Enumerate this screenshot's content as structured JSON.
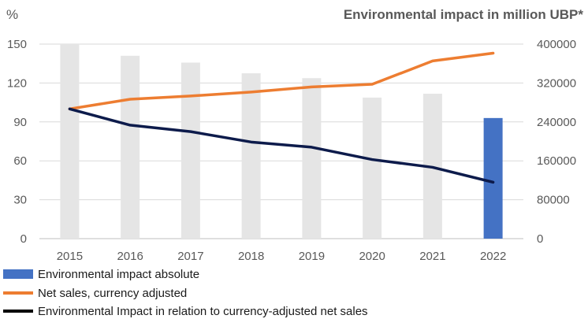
{
  "chart_data": {
    "type": "bar",
    "title": "Environmental impact in million UBP*",
    "ylabel_left": "%",
    "categories": [
      "2015",
      "2016",
      "2017",
      "2018",
      "2019",
      "2020",
      "2021",
      "2022"
    ],
    "y_left": {
      "min": 0,
      "max": 150,
      "ticks": [
        "0",
        "30",
        "60",
        "90",
        "120",
        "150"
      ]
    },
    "y_right": {
      "min": 0,
      "max": 400000,
      "ticks": [
        "0",
        "80000",
        "160000",
        "240000",
        "320000",
        "400000"
      ]
    },
    "series": [
      {
        "name": "Environmental impact absolute",
        "type": "bar",
        "axis": "right",
        "values": [
          400000,
          376000,
          362000,
          340000,
          330000,
          290000,
          298000,
          248000
        ],
        "colors": [
          "#e5e5e5",
          "#e5e5e5",
          "#e5e5e5",
          "#e5e5e5",
          "#e5e5e5",
          "#e5e5e5",
          "#e5e5e5",
          "#4472c4"
        ]
      },
      {
        "name": "Net sales, currency adjusted",
        "type": "line",
        "axis": "left",
        "color": "#ed7d31",
        "values": [
          100,
          107.5,
          110,
          113,
          117,
          119,
          137,
          143
        ]
      },
      {
        "name": "Environmental Impact in relation to currency-adjusted net sales",
        "type": "line",
        "axis": "left",
        "color": "#0d1b4b",
        "values": [
          100,
          87.5,
          82.5,
          74.5,
          70.5,
          61,
          55,
          43.5
        ]
      }
    ],
    "legend": [
      {
        "label": "Environmental impact absolute",
        "swatch": "bar",
        "color": "#4472c4"
      },
      {
        "label": "Net sales, currency adjusted",
        "swatch": "line",
        "color": "#ed7d31"
      },
      {
        "label": "Environmental Impact in relation to currency-adjusted net sales",
        "swatch": "line",
        "color": "#000000"
      }
    ]
  }
}
